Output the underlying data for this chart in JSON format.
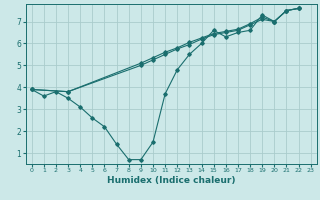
{
  "xlabel": "Humidex (Indice chaleur)",
  "background_color": "#cce8e8",
  "grid_color": "#aacccc",
  "line_color": "#1a6e6e",
  "xlim": [
    -0.5,
    23.5
  ],
  "ylim": [
    0.5,
    7.8
  ],
  "xticks": [
    0,
    1,
    2,
    3,
    4,
    5,
    6,
    7,
    8,
    9,
    10,
    11,
    12,
    13,
    14,
    15,
    16,
    17,
    18,
    19,
    20,
    21,
    22,
    23
  ],
  "yticks": [
    1,
    2,
    3,
    4,
    5,
    6,
    7
  ],
  "line1_x": [
    0,
    1,
    2,
    3,
    4,
    5,
    6,
    7,
    8,
    9,
    10,
    11,
    12,
    13,
    14,
    15,
    16,
    17,
    18,
    19,
    20,
    21,
    22
  ],
  "line1_y": [
    3.9,
    3.6,
    3.8,
    3.5,
    3.1,
    2.6,
    2.2,
    1.4,
    0.7,
    0.7,
    1.5,
    3.7,
    4.8,
    5.5,
    6.0,
    6.6,
    6.3,
    6.5,
    6.6,
    7.3,
    7.0,
    7.5,
    7.6
  ],
  "line2_x": [
    0,
    3,
    9,
    10,
    11,
    12,
    13,
    14,
    15,
    16,
    17,
    18,
    19,
    20,
    21,
    22
  ],
  "line2_y": [
    3.9,
    3.8,
    5.0,
    5.25,
    5.5,
    5.75,
    5.95,
    6.2,
    6.4,
    6.5,
    6.6,
    6.85,
    7.1,
    7.0,
    7.5,
    7.6
  ],
  "line3_x": [
    0,
    3,
    9,
    10,
    11,
    12,
    13,
    14,
    15,
    16,
    17,
    18,
    19,
    20,
    21,
    22
  ],
  "line3_y": [
    3.9,
    3.8,
    5.1,
    5.35,
    5.6,
    5.8,
    6.05,
    6.25,
    6.45,
    6.55,
    6.65,
    6.9,
    7.2,
    7.0,
    7.5,
    7.6
  ]
}
